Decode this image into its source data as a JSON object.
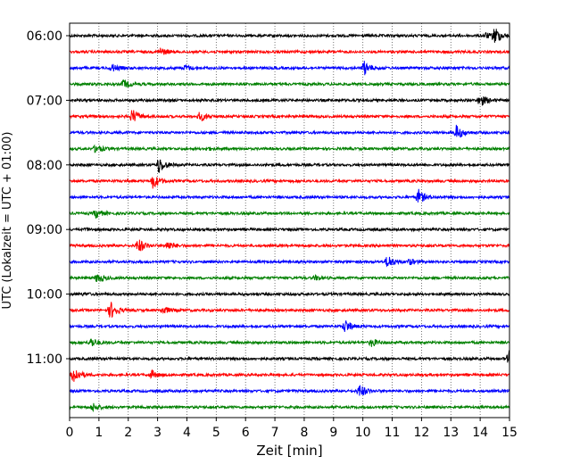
{
  "chart_data": {
    "type": "line",
    "xlabel": "Zeit  [min]",
    "ylabel": "UTC (Lokalzeit = UTC + 01:00)",
    "xlim": [
      0,
      15
    ],
    "x_ticks": [
      "0",
      "1",
      "2",
      "3",
      "4",
      "5",
      "6",
      "7",
      "8",
      "9",
      "10",
      "11",
      "12",
      "13",
      "14",
      "15"
    ],
    "y_tick_labels": [
      "06:00",
      "07:00",
      "08:00",
      "09:00",
      "10:00",
      "11:00"
    ],
    "grid": "vertical-dotted",
    "trace_colors": [
      "#000000",
      "#ff0000",
      "#0000ff",
      "#008000"
    ],
    "traces": [
      {
        "start": "06:00",
        "events": [
          {
            "t": 14.5,
            "amp": 1.0
          },
          {
            "t": 14.2,
            "amp": 0.3
          }
        ]
      },
      {
        "start": "06:15",
        "events": [
          {
            "t": 3.1,
            "amp": 0.45
          }
        ]
      },
      {
        "start": "06:30",
        "events": [
          {
            "t": 1.45,
            "amp": 0.45
          },
          {
            "t": 3.95,
            "amp": 0.3
          },
          {
            "t": 10.05,
            "amp": 0.8
          }
        ]
      },
      {
        "start": "06:45",
        "events": [
          {
            "t": 1.85,
            "amp": 0.5
          }
        ]
      },
      {
        "start": "07:00",
        "events": [
          {
            "t": 14.0,
            "amp": 0.75
          }
        ]
      },
      {
        "start": "07:15",
        "events": [
          {
            "t": 2.15,
            "amp": 0.85
          },
          {
            "t": 4.45,
            "amp": 0.55
          }
        ]
      },
      {
        "start": "07:30",
        "events": [
          {
            "t": 13.2,
            "amp": 0.9
          }
        ]
      },
      {
        "start": "07:45",
        "events": [
          {
            "t": 0.9,
            "amp": 0.5
          },
          {
            "t": 4.7,
            "amp": 0.15
          }
        ]
      },
      {
        "start": "08:00",
        "events": [
          {
            "t": 3.05,
            "amp": 1.0
          }
        ]
      },
      {
        "start": "08:15",
        "events": [
          {
            "t": 2.85,
            "amp": 0.9
          }
        ]
      },
      {
        "start": "08:30",
        "events": [
          {
            "t": 11.9,
            "amp": 0.85
          }
        ]
      },
      {
        "start": "08:45",
        "events": [
          {
            "t": 0.9,
            "amp": 0.5
          }
        ]
      },
      {
        "start": "09:00",
        "events": [
          {
            "t": 0.6,
            "amp": 0.1
          }
        ]
      },
      {
        "start": "09:15",
        "events": [
          {
            "t": 2.35,
            "amp": 0.85
          },
          {
            "t": 3.35,
            "amp": 0.5
          }
        ]
      },
      {
        "start": "09:30",
        "events": [
          {
            "t": 10.85,
            "amp": 0.8
          },
          {
            "t": 11.6,
            "amp": 0.3
          }
        ]
      },
      {
        "start": "09:45",
        "events": [
          {
            "t": 0.95,
            "amp": 0.55
          },
          {
            "t": 8.4,
            "amp": 0.25
          }
        ]
      },
      {
        "start": "10:00",
        "events": [
          {
            "t": 0.5,
            "amp": 0.1
          }
        ]
      },
      {
        "start": "10:15",
        "events": [
          {
            "t": 1.4,
            "amp": 1.0
          },
          {
            "t": 3.2,
            "amp": 0.45
          }
        ]
      },
      {
        "start": "10:30",
        "events": [
          {
            "t": 9.4,
            "amp": 0.8
          }
        ]
      },
      {
        "start": "10:45",
        "events": [
          {
            "t": 0.75,
            "amp": 0.55
          },
          {
            "t": 10.3,
            "amp": 0.45
          }
        ]
      },
      {
        "start": "11:00",
        "events": [
          {
            "t": 15.0,
            "amp": 1.0
          }
        ]
      },
      {
        "start": "11:15",
        "events": [
          {
            "t": 0.15,
            "amp": 1.0
          },
          {
            "t": 2.8,
            "amp": 0.45
          }
        ]
      },
      {
        "start": "11:30",
        "events": [
          {
            "t": 9.9,
            "amp": 0.75
          }
        ]
      },
      {
        "start": "11:45",
        "events": [
          {
            "t": 0.8,
            "amp": 0.45
          }
        ]
      }
    ]
  }
}
